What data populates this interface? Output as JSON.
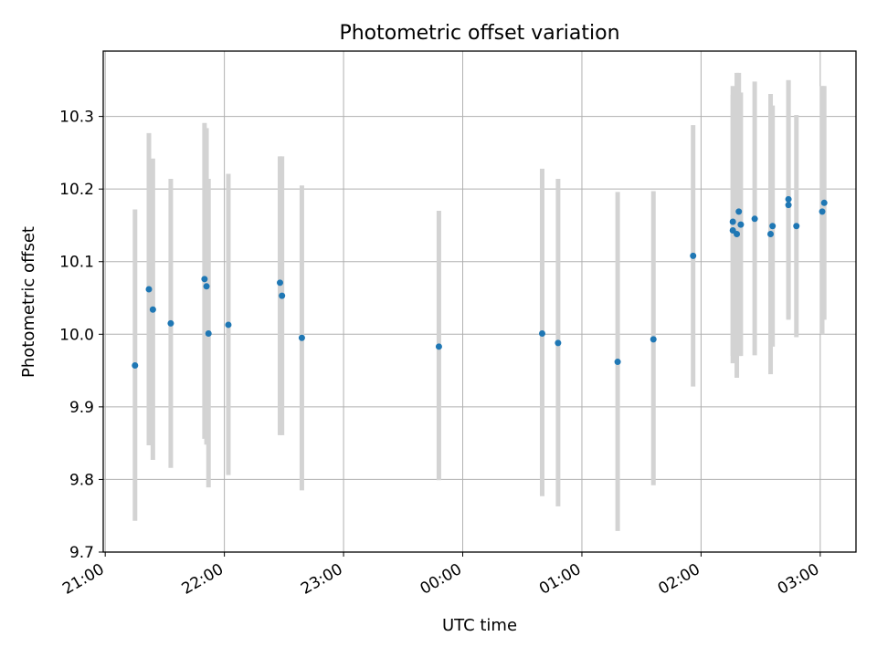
{
  "chart_data": {
    "type": "scatter",
    "title": "Photometric offset variation",
    "xlabel": "UTC time",
    "ylabel": "Photometric offset",
    "x_format": "HH:MM",
    "xlim": [
      "20:59",
      "03:18"
    ],
    "ylim": [
      9.7,
      10.39
    ],
    "x_ticks": [
      "21:00",
      "22:00",
      "23:00",
      "00:00",
      "01:00",
      "02:00",
      "03:00"
    ],
    "y_ticks": [
      "9.7",
      "9.8",
      "9.9",
      "10.0",
      "10.1",
      "10.2",
      "10.3"
    ],
    "grid": true,
    "marker_color": "#1f77b4",
    "errorbar_color": "#d3d3d3",
    "points": [
      {
        "t": "21:15",
        "y": 9.957,
        "lo": 9.743,
        "hi": 10.172
      },
      {
        "t": "21:22",
        "y": 10.062,
        "lo": 9.847,
        "hi": 10.277
      },
      {
        "t": "21:24",
        "y": 10.034,
        "lo": 9.827,
        "hi": 10.242
      },
      {
        "t": "21:33",
        "y": 10.015,
        "lo": 9.816,
        "hi": 10.214
      },
      {
        "t": "21:50",
        "y": 10.076,
        "lo": 9.856,
        "hi": 10.291
      },
      {
        "t": "21:51",
        "y": 10.066,
        "lo": 9.848,
        "hi": 10.284
      },
      {
        "t": "21:52",
        "y": 10.001,
        "lo": 9.789,
        "hi": 10.214
      },
      {
        "t": "22:02",
        "y": 10.013,
        "lo": 9.806,
        "hi": 10.221
      },
      {
        "t": "22:28",
        "y": 10.071,
        "lo": 9.861,
        "hi": 10.245
      },
      {
        "t": "22:29",
        "y": 10.053,
        "lo": 9.861,
        "hi": 10.245
      },
      {
        "t": "22:39",
        "y": 9.995,
        "lo": 9.785,
        "hi": 10.205
      },
      {
        "t": "23:48",
        "y": 9.983,
        "lo": 9.799,
        "hi": 10.17
      },
      {
        "t": "00:40",
        "y": 10.001,
        "lo": 9.777,
        "hi": 10.228
      },
      {
        "t": "00:48",
        "y": 9.988,
        "lo": 9.763,
        "hi": 10.214
      },
      {
        "t": "01:18",
        "y": 9.962,
        "lo": 9.729,
        "hi": 10.196
      },
      {
        "t": "01:36",
        "y": 9.993,
        "lo": 9.792,
        "hi": 10.197
      },
      {
        "t": "01:56",
        "y": 10.108,
        "lo": 9.928,
        "hi": 10.288
      },
      {
        "t": "02:16",
        "y": 10.155,
        "lo": 9.97,
        "hi": 10.342
      },
      {
        "t": "02:16",
        "y": 10.143,
        "lo": 9.96,
        "hi": 10.33
      },
      {
        "t": "02:18",
        "y": 10.138,
        "lo": 9.94,
        "hi": 10.36
      },
      {
        "t": "02:19",
        "y": 10.169,
        "lo": 9.97,
        "hi": 10.36
      },
      {
        "t": "02:20",
        "y": 10.151,
        "lo": 9.97,
        "hi": 10.333
      },
      {
        "t": "02:27",
        "y": 10.159,
        "lo": 9.971,
        "hi": 10.348
      },
      {
        "t": "02:35",
        "y": 10.138,
        "lo": 9.945,
        "hi": 10.331
      },
      {
        "t": "02:36",
        "y": 10.149,
        "lo": 9.983,
        "hi": 10.315
      },
      {
        "t": "02:44",
        "y": 10.186,
        "lo": 10.022,
        "hi": 10.35
      },
      {
        "t": "02:44",
        "y": 10.178,
        "lo": 10.02,
        "hi": 10.35
      },
      {
        "t": "02:48",
        "y": 10.149,
        "lo": 9.996,
        "hi": 10.302
      },
      {
        "t": "03:01",
        "y": 10.169,
        "lo": 10.0,
        "hi": 10.342
      },
      {
        "t": "03:02",
        "y": 10.181,
        "lo": 10.02,
        "hi": 10.342
      }
    ]
  }
}
